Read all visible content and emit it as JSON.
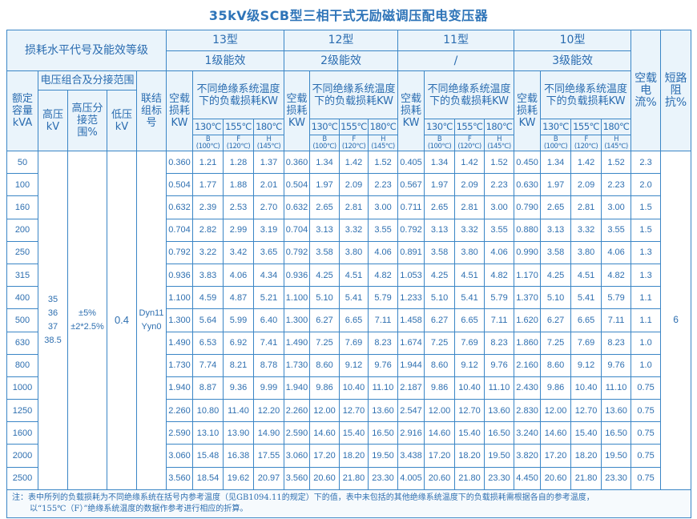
{
  "title": "35kV级SCB型三相干式无励磁调压配电变压器",
  "header": {
    "loss_level_label": "损耗水平代号及能效等级",
    "types": [
      {
        "name": "13型",
        "efficiency": "1级能效"
      },
      {
        "name": "12型",
        "efficiency": "2级能效"
      },
      {
        "name": "11型",
        "efficiency": "/"
      },
      {
        "name": "10型",
        "efficiency": "3级能效"
      }
    ],
    "rated_capacity": "额定容量kVA",
    "voltage_group": "电压组合及分接范围",
    "hv": "高压kV",
    "tap_range": "高压分接范围%",
    "lv": "低压kV",
    "connection": "联结组标号",
    "no_load_loss": "空载损耗KW",
    "load_loss": "不同绝缘系统温度下的负载损耗KW",
    "temps": [
      "130℃",
      "155℃",
      "180℃"
    ],
    "classes": [
      {
        "letter": "B",
        "ref": "(100℃)"
      },
      {
        "letter": "F",
        "ref": "(120℃)"
      },
      {
        "letter": "H",
        "ref": "(145℃)"
      }
    ],
    "no_load_current": "空载电流%",
    "impedance": "短路阻抗%"
  },
  "merged": {
    "hv_values": [
      "35",
      "36",
      "37",
      "38.5"
    ],
    "tap_values": [
      "±5%",
      "±2*2.5%"
    ],
    "lv_value": "0.4",
    "connection_values": [
      "Dyn11",
      "Yyn0"
    ],
    "impedance_value": "6"
  },
  "rows": [
    {
      "capacity": "50",
      "values": [
        "0.360",
        "1.21",
        "1.28",
        "1.37",
        "0.360",
        "1.34",
        "1.42",
        "1.52",
        "0.405",
        "1.34",
        "1.42",
        "1.52",
        "0.450",
        "1.34",
        "1.42",
        "1.52"
      ],
      "current": "2.3"
    },
    {
      "capacity": "100",
      "values": [
        "0.504",
        "1.77",
        "1.88",
        "2.01",
        "0.504",
        "1.97",
        "2.09",
        "2.23",
        "0.567",
        "1.97",
        "2.09",
        "2.23",
        "0.630",
        "1.97",
        "2.09",
        "2.23"
      ],
      "current": "2.0"
    },
    {
      "capacity": "160",
      "values": [
        "0.632",
        "2.39",
        "2.53",
        "2.70",
        "0.632",
        "2.65",
        "2.81",
        "3.00",
        "0.711",
        "2.65",
        "2.81",
        "3.00",
        "0.790",
        "2.65",
        "2.81",
        "3.00"
      ],
      "current": "1.5"
    },
    {
      "capacity": "200",
      "values": [
        "0.704",
        "2.82",
        "2.99",
        "3.19",
        "0.704",
        "3.13",
        "3.32",
        "3.55",
        "0.792",
        "3.13",
        "3.32",
        "3.55",
        "0.880",
        "3.13",
        "3.32",
        "3.55"
      ],
      "current": "1.5"
    },
    {
      "capacity": "250",
      "values": [
        "0.792",
        "3.22",
        "3.42",
        "3.65",
        "0.792",
        "3.58",
        "3.80",
        "4.06",
        "0.891",
        "3.58",
        "3.80",
        "4.06",
        "0.990",
        "3.58",
        "3.80",
        "4.06"
      ],
      "current": "1.3"
    },
    {
      "capacity": "315",
      "values": [
        "0.936",
        "3.83",
        "4.06",
        "4.34",
        "0.936",
        "4.25",
        "4.51",
        "4.82",
        "1.053",
        "4.25",
        "4.51",
        "4.82",
        "1.170",
        "4.25",
        "4.51",
        "4.82"
      ],
      "current": "1.3"
    },
    {
      "capacity": "400",
      "values": [
        "1.100",
        "4.59",
        "4.87",
        "5.21",
        "1.100",
        "5.10",
        "5.41",
        "5.79",
        "1.233",
        "5.10",
        "5.41",
        "5.79",
        "1.370",
        "5.10",
        "5.41",
        "5.79"
      ],
      "current": "1.1"
    },
    {
      "capacity": "500",
      "values": [
        "1.300",
        "5.64",
        "5.99",
        "6.40",
        "1.300",
        "6.27",
        "6.65",
        "7.11",
        "1.458",
        "6.27",
        "6.65",
        "7.11",
        "1.620",
        "6.27",
        "6.65",
        "7.11"
      ],
      "current": "1.1"
    },
    {
      "capacity": "630",
      "values": [
        "1.490",
        "6.53",
        "6.92",
        "7.41",
        "1.490",
        "7.25",
        "7.69",
        "8.23",
        "1.674",
        "7.25",
        "7.69",
        "8.23",
        "1.860",
        "7.25",
        "7.69",
        "8.23"
      ],
      "current": "1.0"
    },
    {
      "capacity": "800",
      "values": [
        "1.730",
        "7.74",
        "8.21",
        "8.78",
        "1.730",
        "8.60",
        "9.12",
        "9.76",
        "1.944",
        "8.60",
        "9.12",
        "9.76",
        "2.160",
        "8.60",
        "9.12",
        "9.76"
      ],
      "current": "1.0"
    },
    {
      "capacity": "1000",
      "values": [
        "1.940",
        "8.87",
        "9.36",
        "9.99",
        "1.940",
        "9.86",
        "10.40",
        "11.10",
        "2.187",
        "9.86",
        "10.40",
        "11.10",
        "2.430",
        "9.86",
        "10.40",
        "11.10"
      ],
      "current": "0.75"
    },
    {
      "capacity": "1250",
      "values": [
        "2.260",
        "10.80",
        "11.40",
        "12.20",
        "2.260",
        "12.00",
        "12.70",
        "13.60",
        "2.547",
        "12.00",
        "12.70",
        "13.60",
        "2.830",
        "12.00",
        "12.70",
        "13.60"
      ],
      "current": "0.75"
    },
    {
      "capacity": "1600",
      "values": [
        "2.590",
        "13.10",
        "13.90",
        "14.90",
        "2.590",
        "14.60",
        "15.40",
        "16.50",
        "2.916",
        "14.60",
        "15.40",
        "16.50",
        "3.240",
        "14.60",
        "15.40",
        "16.50"
      ],
      "current": "0.75"
    },
    {
      "capacity": "2000",
      "values": [
        "3.060",
        "15.48",
        "16.38",
        "17.55",
        "3.060",
        "17.20",
        "18.20",
        "19.50",
        "3.438",
        "17.20",
        "18.20",
        "19.50",
        "3.820",
        "17.20",
        "18.20",
        "19.50"
      ],
      "current": "0.75"
    },
    {
      "capacity": "2500",
      "values": [
        "3.560",
        "18.54",
        "19.62",
        "20.97",
        "3.560",
        "20.60",
        "21.80",
        "23.30",
        "4.005",
        "20.60",
        "21.80",
        "23.30",
        "4.450",
        "20.60",
        "21.80",
        "23.30"
      ],
      "current": "0.75"
    }
  ],
  "note": {
    "line1": "注：表中所列的负载损耗为不同绝缘系统在括号内参考温度（见GB1094.11的规定）下的值，表中未包括的其他绝缘系统温度下的负载损耗需根据各自的参考温度，",
    "line2": "以“155℃（F）”绝缘系统温度的数据作参考进行相应的折算。"
  },
  "colors": {
    "text": "#2b6cb0",
    "border": "#3b86c6",
    "header_bg": "#eaf4fb"
  }
}
